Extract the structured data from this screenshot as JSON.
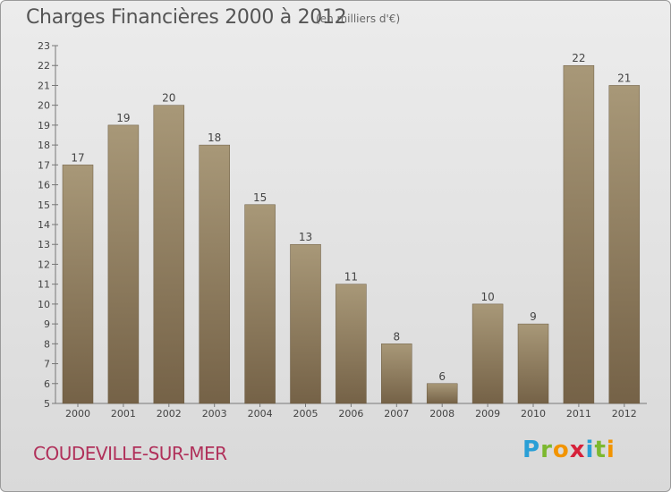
{
  "header": {
    "title": "Charges Financières 2000 à 2012",
    "subtitle": "(en milliers d'€)"
  },
  "footer": {
    "commune": "COUDEVILLE-SUR-MER",
    "logo_letters": [
      "P",
      "r",
      "o",
      "x",
      "i",
      "t",
      "i"
    ],
    "logo_colors": [
      "#2a9fd6",
      "#7cb82f",
      "#f29400",
      "#d6213a",
      "#2a9fd6",
      "#7cb82f",
      "#f29400"
    ]
  },
  "colors": {
    "bar_light": "#a89878",
    "bar_dark": "#756247",
    "axis": "#777777",
    "text": "#444444",
    "commune": "#b0305a"
  },
  "chart_data": {
    "type": "bar",
    "title": "Charges Financières 2000 à 2012",
    "subtitle": "(en milliers d'€)",
    "categories": [
      "2000",
      "2001",
      "2002",
      "2003",
      "2004",
      "2005",
      "2006",
      "2007",
      "2008",
      "2009",
      "2010",
      "2011",
      "2012"
    ],
    "values": [
      17,
      19,
      20,
      18,
      15,
      13,
      11,
      8,
      6,
      10,
      9,
      22,
      21
    ],
    "ylim": [
      5,
      23
    ],
    "yticks": [
      5,
      6,
      7,
      8,
      9,
      10,
      11,
      12,
      13,
      14,
      15,
      16,
      17,
      18,
      19,
      20,
      21,
      22,
      23
    ],
    "xlabel": "",
    "ylabel": "",
    "grid": false,
    "data_labels": true
  }
}
